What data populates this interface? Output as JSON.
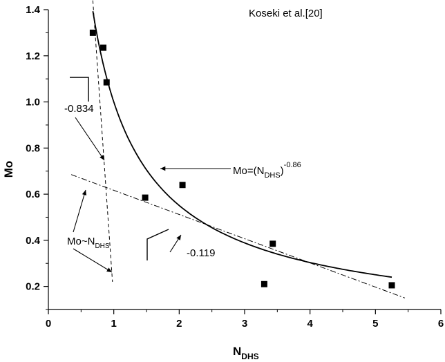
{
  "chart_data": {
    "type": "scatter",
    "title": "Koseki et al.[20]",
    "xlabel": {
      "main": "N",
      "sub": "DHS"
    },
    "ylabel": "Mo",
    "xlim": [
      0,
      6
    ],
    "ylim": [
      0.1,
      1.4
    ],
    "xticks": [
      0,
      1,
      2,
      3,
      4,
      5,
      6
    ],
    "yticks": [
      0.2,
      0.4,
      0.6,
      0.8,
      1.0,
      1.2,
      1.4
    ],
    "xtick_labels": [
      "0",
      "1",
      "2",
      "3",
      "4",
      "5",
      "6"
    ],
    "ytick_labels": [
      "0.2",
      "0.4",
      "0.6",
      "0.8",
      "1.0",
      "1.2",
      "1.4"
    ],
    "grid": false,
    "legend": "none",
    "points": {
      "x": [
        0.68,
        0.84,
        0.89,
        1.48,
        2.05,
        3.3,
        3.43,
        5.25
      ],
      "y": [
        1.3,
        1.235,
        1.085,
        0.585,
        0.64,
        0.21,
        0.385,
        0.205
      ]
    },
    "lines": [
      {
        "style": "solid",
        "equation": "Mo = N^-0.86",
        "exponent": -0.86,
        "x_range": [
          0.68,
          5.25
        ]
      },
      {
        "style": "dashed",
        "label": "-0.834",
        "points": [
          [
            0.68,
            1.44
          ],
          [
            0.98,
            0.22
          ]
        ]
      },
      {
        "style": "dashdot",
        "label": "-0.119",
        "points": [
          [
            0.35,
            0.685
          ],
          [
            5.45,
            0.15
          ]
        ]
      }
    ],
    "annotations": {
      "equation": {
        "prefix": "Mo=(N",
        "sub": "DHS",
        "suffix": ")",
        "sup": "-0.86"
      },
      "slope_steep": "-0.834",
      "slope_shallow": "-0.119",
      "relation": {
        "prefix": "Mo~N",
        "sub": "DHS"
      }
    }
  }
}
